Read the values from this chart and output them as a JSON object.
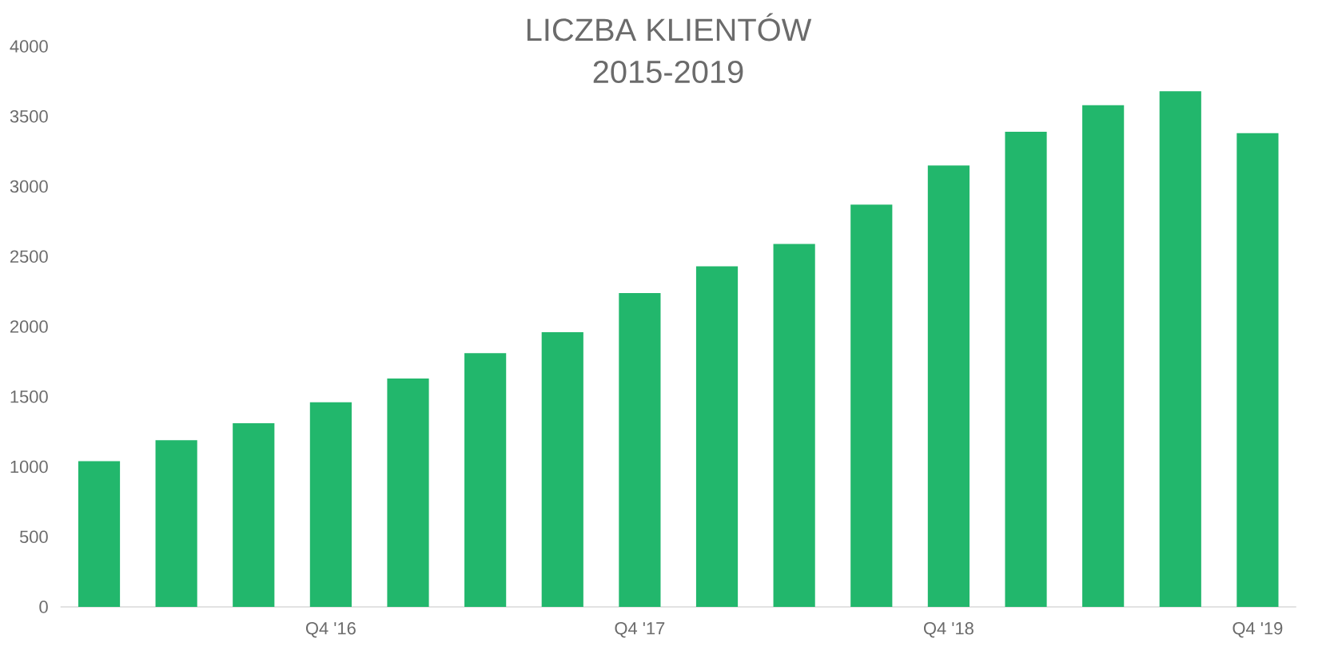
{
  "chart_data": {
    "type": "bar",
    "title": "LICZBA KLIENTÓW",
    "subtitle": "2015-2019",
    "categories": [
      null,
      null,
      null,
      "Q4 '16",
      null,
      null,
      null,
      "Q4 '17",
      null,
      null,
      null,
      "Q4 '18",
      null,
      null,
      null,
      "Q4 '19"
    ],
    "values": [
      1040,
      1190,
      1310,
      1460,
      1630,
      1810,
      1960,
      2240,
      2430,
      2590,
      2870,
      3150,
      3390,
      3580,
      3680,
      3380
    ],
    "color": "#22b76c",
    "ylim": [
      0,
      4000
    ],
    "yticks": [
      0,
      500,
      1000,
      1500,
      2000,
      2500,
      3000,
      3500,
      4000
    ],
    "grid": false
  }
}
